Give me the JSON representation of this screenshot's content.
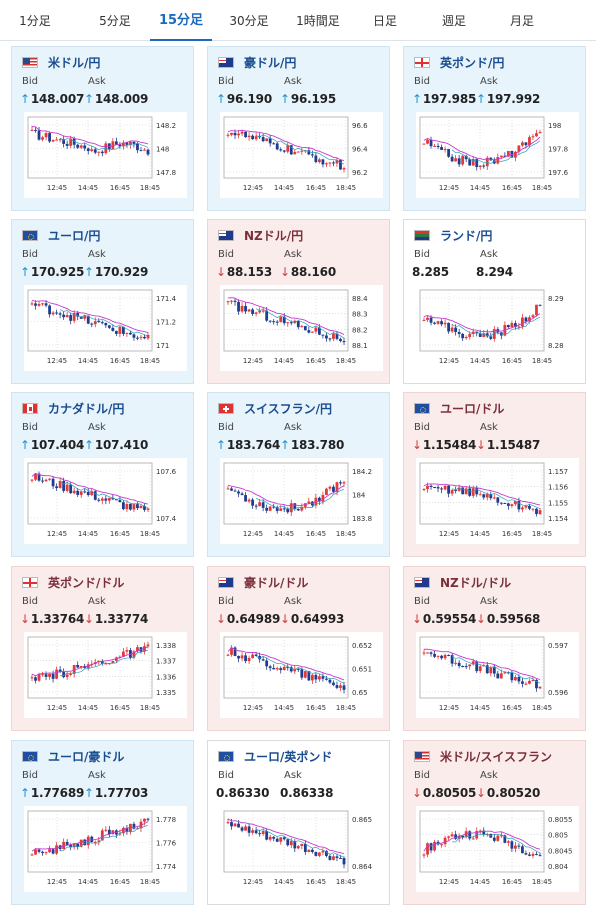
{
  "tabs": [
    "1分足",
    "5分足",
    "15分足",
    "30分足",
    "1時間足",
    "日足",
    "週足",
    "月足"
  ],
  "active_tab": 2,
  "labels": {
    "bid": "Bid",
    "ask": "Ask"
  },
  "x_ticks": [
    "12:45",
    "14:45",
    "16:45",
    "18:45"
  ],
  "pairs": [
    {
      "name": "米ドル/円",
      "flag": "us-flag",
      "bid": "148.007",
      "ask": "148.009",
      "dir": "up",
      "ylabels": [
        "148.2",
        "148",
        "147.8"
      ]
    },
    {
      "name": "豪ドル/円",
      "flag": "au-flag",
      "bid": "96.190",
      "ask": "96.195",
      "dir": "up",
      "ylabels": [
        "96.6",
        "96.4",
        "96.2"
      ]
    },
    {
      "name": "英ポンド/円",
      "flag": "gb-flag",
      "bid": "197.985",
      "ask": "197.992",
      "dir": "up",
      "ylabels": [
        "198",
        "197.8",
        "197.6"
      ]
    },
    {
      "name": "ユーロ/円",
      "flag": "eu-flag",
      "bid": "170.925",
      "ask": "170.929",
      "dir": "up",
      "ylabels": [
        "171.4",
        "171.2",
        "171"
      ]
    },
    {
      "name": "NZドル/円",
      "flag": "nz-flag",
      "bid": "88.153",
      "ask": "88.160",
      "dir": "down",
      "ylabels": [
        "88.4",
        "88.3",
        "88.2",
        "88.1"
      ]
    },
    {
      "name": "ランド/円",
      "flag": "za-flag",
      "bid": "8.285",
      "ask": "8.294",
      "dir": "flat",
      "ylabels": [
        "8.29",
        "8.28"
      ]
    },
    {
      "name": "カナダドル/円",
      "flag": "ca-flag",
      "bid": "107.404",
      "ask": "107.410",
      "dir": "up",
      "ylabels": [
        "107.6",
        "107.4"
      ]
    },
    {
      "name": "スイスフラン/円",
      "flag": "ch-flag",
      "bid": "183.764",
      "ask": "183.780",
      "dir": "up",
      "ylabels": [
        "184.2",
        "184",
        "183.8"
      ]
    },
    {
      "name": "ユーロ/ドル",
      "flag": "eu-us-flag",
      "bid": "1.15484",
      "ask": "1.15487",
      "dir": "down",
      "ylabels": [
        "1.157",
        "1.156",
        "1.155",
        "1.154"
      ]
    },
    {
      "name": "英ポンド/ドル",
      "flag": "gb-us-flag",
      "bid": "1.33764",
      "ask": "1.33774",
      "dir": "down",
      "ylabels": [
        "1.338",
        "1.337",
        "1.336",
        "1.335"
      ]
    },
    {
      "name": "豪ドル/ドル",
      "flag": "au-us-flag",
      "bid": "0.64989",
      "ask": "0.64993",
      "dir": "down",
      "ylabels": [
        "0.652",
        "0.651",
        "0.65"
      ]
    },
    {
      "name": "NZドル/ドル",
      "flag": "nz-us-flag",
      "bid": "0.59554",
      "ask": "0.59568",
      "dir": "down",
      "ylabels": [
        "0.597",
        "0.596"
      ]
    },
    {
      "name": "ユーロ/豪ドル",
      "flag": "eu-au-flag",
      "bid": "1.77689",
      "ask": "1.77703",
      "dir": "up",
      "ylabels": [
        "1.778",
        "1.776",
        "1.774"
      ]
    },
    {
      "name": "ユーロ/英ポンド",
      "flag": "eu-gb-flag",
      "bid": "0.86330",
      "ask": "0.86338",
      "dir": "flat",
      "ylabels": [
        "0.865",
        "0.864"
      ]
    },
    {
      "name": "米ドル/スイスフラン",
      "flag": "us-ch-flag",
      "bid": "0.80505",
      "ask": "0.80520",
      "dir": "down",
      "ylabels": [
        "0.8055",
        "0.805",
        "0.8045",
        "0.804"
      ]
    }
  ],
  "chart_data": [
    {
      "type": "candlestick",
      "title": "米ドル/円",
      "x_ticks": [
        "12:45",
        "14:45",
        "16:45",
        "18:45"
      ],
      "y_ticks": [
        148.2,
        148,
        147.8
      ],
      "trend": "down-then-flat"
    },
    {
      "type": "candlestick",
      "title": "豪ドル/円",
      "x_ticks": [
        "12:45",
        "14:45",
        "16:45",
        "18:45"
      ],
      "y_ticks": [
        96.6,
        96.4,
        96.2
      ],
      "trend": "down"
    },
    {
      "type": "candlestick",
      "title": "英ポンド/円",
      "x_ticks": [
        "12:45",
        "14:45",
        "16:45",
        "18:45"
      ],
      "y_ticks": [
        198,
        197.8,
        197.6
      ],
      "trend": "down-then-up"
    },
    {
      "type": "candlestick",
      "title": "ユーロ/円",
      "x_ticks": [
        "12:45",
        "14:45",
        "16:45",
        "18:45"
      ],
      "y_ticks": [
        171.4,
        171.2,
        171
      ],
      "trend": "down"
    },
    {
      "type": "candlestick",
      "title": "NZドル/円",
      "x_ticks": [
        "12:45",
        "14:45",
        "16:45",
        "18:45"
      ],
      "y_ticks": [
        88.4,
        88.3,
        88.2,
        88.1
      ],
      "trend": "down"
    },
    {
      "type": "candlestick",
      "title": "ランド/円",
      "x_ticks": [
        "12:45",
        "14:45",
        "16:45",
        "18:45"
      ],
      "y_ticks": [
        8.29,
        8.28
      ],
      "trend": "down-then-up"
    },
    {
      "type": "candlestick",
      "title": "カナダドル/円",
      "x_ticks": [
        "12:45",
        "14:45",
        "16:45",
        "18:45"
      ],
      "y_ticks": [
        107.6,
        107.4
      ],
      "trend": "down"
    },
    {
      "type": "candlestick",
      "title": "スイスフラン/円",
      "x_ticks": [
        "12:45",
        "14:45",
        "16:45",
        "18:45"
      ],
      "y_ticks": [
        184.2,
        184,
        183.8
      ],
      "trend": "down-then-up"
    },
    {
      "type": "candlestick",
      "title": "ユーロ/ドル",
      "x_ticks": [
        "12:45",
        "14:45",
        "16:45",
        "18:45"
      ],
      "y_ticks": [
        1.157,
        1.156,
        1.155,
        1.154
      ],
      "trend": "flat-down"
    },
    {
      "type": "candlestick",
      "title": "英ポンド/ドル",
      "x_ticks": [
        "12:45",
        "14:45",
        "16:45",
        "18:45"
      ],
      "y_ticks": [
        1.338,
        1.337,
        1.336,
        1.335
      ],
      "trend": "up"
    },
    {
      "type": "candlestick",
      "title": "豪ドル/ドル",
      "x_ticks": [
        "12:45",
        "14:45",
        "16:45",
        "18:45"
      ],
      "y_ticks": [
        0.652,
        0.651,
        0.65
      ],
      "trend": "down"
    },
    {
      "type": "candlestick",
      "title": "NZドル/ドル",
      "x_ticks": [
        "12:45",
        "14:45",
        "16:45",
        "18:45"
      ],
      "y_ticks": [
        0.597,
        0.596
      ],
      "trend": "down"
    },
    {
      "type": "candlestick",
      "title": "ユーロ/豪ドル",
      "x_ticks": [
        "12:45",
        "14:45",
        "16:45",
        "18:45"
      ],
      "y_ticks": [
        1.778,
        1.776,
        1.774
      ],
      "trend": "up"
    },
    {
      "type": "candlestick",
      "title": "ユーロ/英ポンド",
      "x_ticks": [
        "12:45",
        "14:45",
        "16:45",
        "18:45"
      ],
      "y_ticks": [
        0.865,
        0.864
      ],
      "trend": "down"
    },
    {
      "type": "candlestick",
      "title": "米ドル/スイスフラン",
      "x_ticks": [
        "12:45",
        "14:45",
        "16:45",
        "18:45"
      ],
      "y_ticks": [
        0.8055,
        0.805,
        0.8045,
        0.804
      ],
      "trend": "flat-up"
    }
  ]
}
